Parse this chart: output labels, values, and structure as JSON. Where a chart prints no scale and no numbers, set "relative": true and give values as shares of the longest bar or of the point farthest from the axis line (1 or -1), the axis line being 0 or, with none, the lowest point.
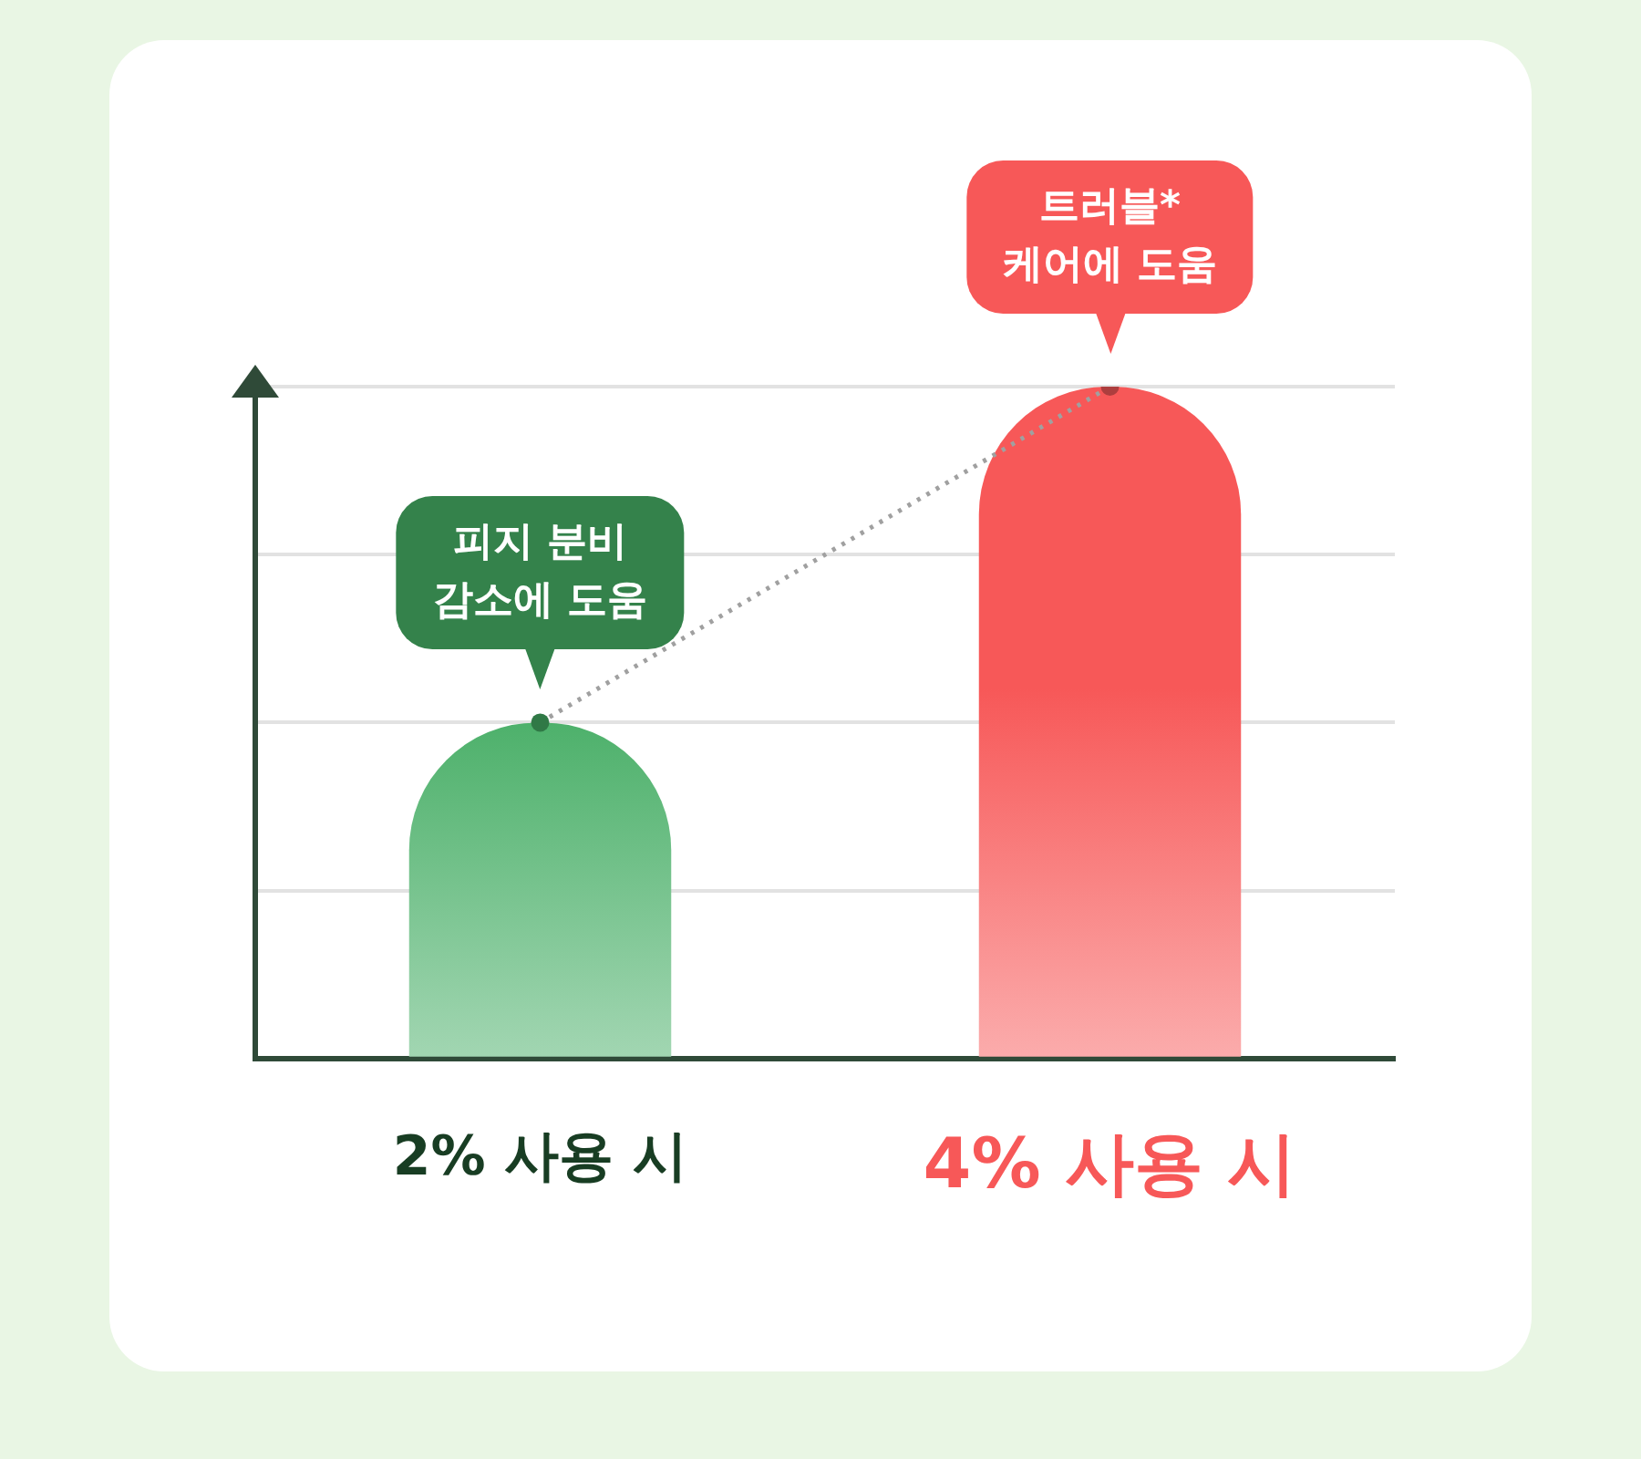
{
  "chart_data": {
    "type": "bar",
    "relative": true,
    "categories": [
      "2% 사용 시",
      "4% 사용 시"
    ],
    "grid": "y",
    "legend": false,
    "series": [
      {
        "colors": [
          "#45ad64",
          "#f75858"
        ],
        "values": [
          0.5,
          1
        ]
      },
      {
        "type": "line",
        "color": "#a0a0a0",
        "values": [
          0.5,
          1
        ],
        "line_style": "dotted",
        "marker": "circle"
      }
    ],
    "annotations": [
      {
        "text": "피지 분비\n감소에 도움",
        "x": "2% 사용 시",
        "y": 0.5
      },
      {
        "text": "트러블*\n케어에 도움",
        "x": "4% 사용 시",
        "y": 1
      }
    ]
  }
}
